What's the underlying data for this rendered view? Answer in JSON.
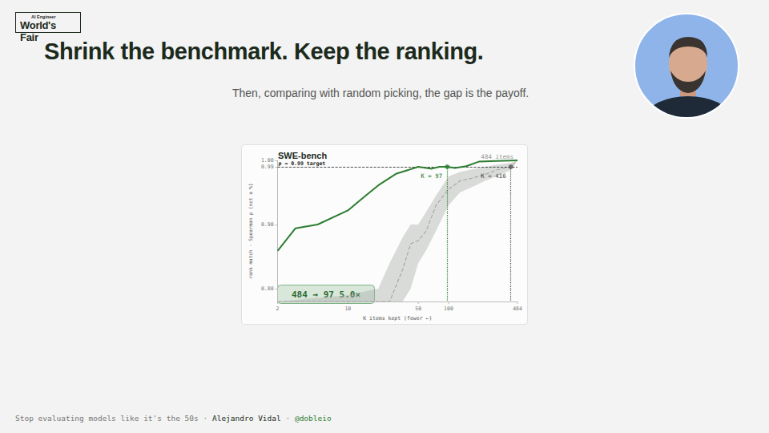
{
  "slide": {
    "logo": {
      "small": "AI Engineer",
      "big": "World's Fair"
    },
    "title": "Shrink the benchmark. Keep the ranking.",
    "subtitle": "Then, comparing with random picking, the gap is the payoff.",
    "footer": {
      "parts": [
        "Stop evaluating models like it's the 50s",
        "Alejandro Vidal",
        "@dobleio"
      ],
      "separator": "·"
    }
  },
  "chart_data": {
    "type": "line",
    "title": "SWE-bench",
    "subtitle": "484 items",
    "xlabel": "K items kept (fewer ←)",
    "ylabel": "rank match · Spearman ρ (not a %)",
    "log": "x",
    "grid": false,
    "xlim": [
      2,
      484
    ],
    "xticks": [
      2,
      10,
      50,
      100,
      484
    ],
    "ylim": [
      0.78,
      1.0
    ],
    "yticks": [
      {
        "value": 0.8,
        "label": "0.80"
      },
      {
        "value": 0.9,
        "label": "0.90"
      },
      {
        "value": 0.99,
        "label": "0.99"
      },
      {
        "value": 1.0,
        "label": "1.00"
      }
    ],
    "series": [
      {
        "color": "#2e7d32",
        "line_style": "solid",
        "marker": "none",
        "x": [
          2,
          3,
          5,
          10,
          15,
          20,
          30,
          50,
          68,
          81,
          97,
          116,
          150,
          200,
          300,
          484
        ],
        "values": [
          0.859,
          0.894,
          0.9,
          0.922,
          0.945,
          0.961,
          0.979,
          0.99,
          0.987,
          0.99,
          0.99,
          0.988,
          0.991,
          0.998,
          0.999,
          1.0
        ]
      },
      {
        "color": "#a8aaa8",
        "line_style": "dashed",
        "marker": "none",
        "x": [
          2,
          10,
          20,
          26,
          35,
          42,
          50,
          60,
          75,
          100,
          130,
          170,
          230,
          300,
          416,
          484
        ],
        "values": [
          0.78,
          0.78,
          0.78,
          0.78,
          0.83,
          0.87,
          0.875,
          0.89,
          0.93,
          0.955,
          0.968,
          0.972,
          0.978,
          0.985,
          0.99,
          1.0
        ],
        "lower": [
          0.78,
          0.78,
          0.78,
          0.78,
          0.78,
          0.8,
          0.84,
          0.86,
          0.89,
          0.93,
          0.95,
          0.958,
          0.968,
          0.975,
          0.985,
          1.0
        ],
        "upper": [
          0.78,
          0.79,
          0.8,
          0.84,
          0.88,
          0.9,
          0.9,
          0.92,
          0.945,
          0.975,
          0.982,
          0.986,
          0.99,
          0.993,
          0.996,
          1.0
        ]
      }
    ],
    "target": {
      "value": 0.99,
      "label": "ρ = 0.99 target"
    },
    "markers": [
      {
        "x": 97,
        "y": 0.99,
        "label": "K = 97",
        "color": "#2e7d32"
      },
      {
        "x": 416,
        "y": 0.99,
        "label": "K = 416",
        "color": "#555555"
      }
    ],
    "badge": "484 → 97 5.0×"
  }
}
